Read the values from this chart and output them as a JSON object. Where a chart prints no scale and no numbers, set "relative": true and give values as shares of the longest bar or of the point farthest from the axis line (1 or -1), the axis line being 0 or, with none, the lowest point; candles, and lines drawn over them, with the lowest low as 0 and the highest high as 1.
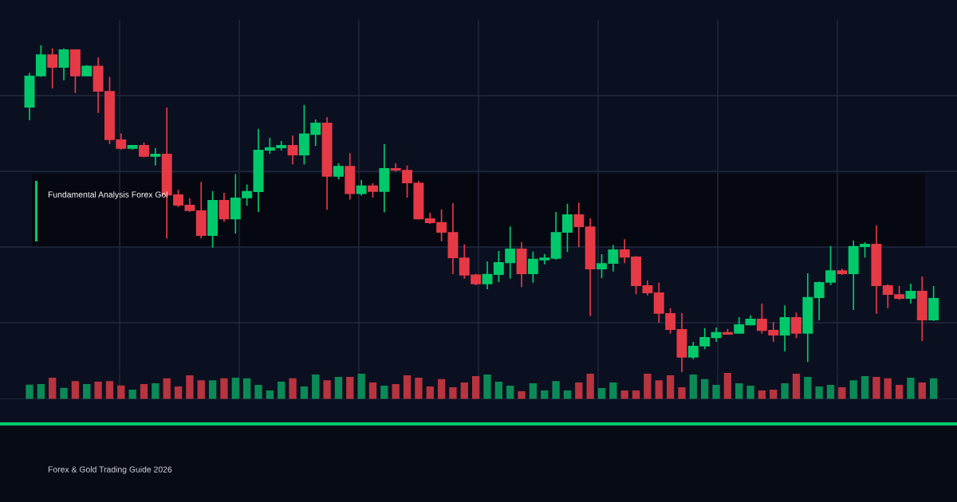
{
  "chart_data": [
    {
      "type": "candlestick",
      "relative": true,
      "grid": true,
      "colors": [
        "#00c96b",
        "#00c96b",
        "#e63946",
        "#00c96b",
        "#e63946",
        "#00c96b",
        "#e63946",
        "#e63946",
        "#e63946",
        "#00c96b",
        "#e63946",
        "#00c96b",
        "#e63946",
        "#e63946",
        "#e63946",
        "#e63946",
        "#00c96b",
        "#e63946",
        "#00c96b",
        "#00c96b",
        "#00c96b",
        "#00c96b",
        "#00c96b",
        "#e63946",
        "#00c96b",
        "#00c96b",
        "#e63946",
        "#00c96b",
        "#e63946",
        "#00c96b",
        "#e63946",
        "#00c96b",
        "#e63946",
        "#e63946",
        "#e63946",
        "#e63946",
        "#e63946",
        "#e63946",
        "#e63946",
        "#e63946",
        "#00c96b",
        "#00c96b",
        "#00c96b",
        "#e63946",
        "#00c96b",
        "#00c96b",
        "#00c96b",
        "#00c96b",
        "#e63946",
        "#e63946",
        "#00c96b",
        "#00c96b",
        "#e63946",
        "#e63946",
        "#e63946",
        "#e63946",
        "#e63946",
        "#e63946",
        "#00c96b",
        "#00c96b",
        "#00c96b",
        "#e63946",
        "#00c96b",
        "#00c96b",
        "#e63946",
        "#e63946",
        "#00c96b",
        "#e63946",
        "#00c96b",
        "#00c96b",
        "#00c96b",
        "#e63946",
        "#00c96b",
        "#00c96b",
        "#e63946",
        "#e63946",
        "#e63946",
        "#00c96b",
        "#e63946",
        "#00c96b"
      ],
      "annotations": [
        "Fundamental Analysis Forex Gol",
        "Forex & Gold Trading Guide 2026"
      ],
      "categories": [
        null,
        null,
        null,
        null,
        null,
        null,
        null,
        null,
        null,
        null,
        null,
        null,
        null,
        null,
        null,
        null,
        null,
        null,
        null,
        null,
        null,
        null,
        null,
        null,
        null,
        null,
        null,
        null,
        null,
        null,
        null,
        null,
        null,
        null,
        null,
        null,
        null,
        null,
        null,
        null,
        null,
        null,
        null,
        null,
        null,
        null,
        null,
        null,
        null,
        null,
        null,
        null,
        null,
        null,
        null,
        null,
        null,
        null,
        null,
        null,
        null,
        null,
        null,
        null,
        null,
        null,
        null,
        null,
        null,
        null,
        null,
        null,
        null,
        null,
        null,
        null,
        null,
        null,
        null,
        null
      ],
      "ohlc": [
        [
          0.809,
          0.915,
          0.771,
          0.907
        ],
        [
          0.905,
          1.0,
          0.903,
          0.972
        ],
        [
          0.972,
          0.99,
          0.868,
          0.931
        ],
        [
          0.931,
          0.99,
          0.893,
          0.987
        ],
        [
          0.987,
          0.987,
          0.854,
          0.905
        ],
        [
          0.905,
          0.939,
          0.905,
          0.937
        ],
        [
          0.937,
          0.963,
          0.793,
          0.858
        ],
        [
          0.86,
          0.903,
          0.698,
          0.71
        ],
        [
          0.712,
          0.73,
          0.681,
          0.683
        ],
        [
          0.683,
          0.695,
          0.681,
          0.695
        ],
        [
          0.695,
          0.703,
          0.657,
          0.659
        ],
        [
          0.659,
          0.686,
          0.632,
          0.668
        ],
        [
          0.668,
          0.809,
          0.409,
          0.541
        ],
        [
          0.544,
          0.558,
          0.505,
          0.51
        ],
        [
          0.512,
          0.532,
          0.49,
          0.493
        ],
        [
          0.495,
          0.582,
          0.409,
          0.417
        ],
        [
          0.417,
          0.554,
          0.381,
          0.527
        ],
        [
          0.527,
          0.549,
          0.46,
          0.468
        ],
        [
          0.468,
          0.606,
          0.424,
          0.534
        ],
        [
          0.532,
          0.574,
          0.509,
          0.554
        ],
        [
          0.551,
          0.744,
          0.49,
          0.68
        ],
        [
          0.678,
          0.717,
          0.668,
          0.688
        ],
        [
          0.685,
          0.707,
          0.678,
          0.695
        ],
        [
          0.695,
          0.724,
          0.636,
          0.663
        ],
        [
          0.663,
          0.817,
          0.635,
          0.73
        ],
        [
          0.726,
          0.773,
          0.692,
          0.763
        ],
        [
          0.763,
          0.78,
          0.497,
          0.598
        ],
        [
          0.598,
          0.639,
          0.59,
          0.631
        ],
        [
          0.631,
          0.67,
          0.528,
          0.545
        ],
        [
          0.545,
          0.588,
          0.54,
          0.571
        ],
        [
          0.571,
          0.578,
          0.534,
          0.552
        ],
        [
          0.552,
          0.697,
          0.489,
          0.624
        ],
        [
          0.624,
          0.639,
          0.614,
          0.617
        ],
        [
          0.619,
          0.632,
          0.534,
          0.578
        ],
        [
          0.58,
          0.585,
          0.468,
          0.468
        ],
        [
          0.471,
          0.488,
          0.454,
          0.456
        ],
        [
          0.459,
          0.498,
          0.401,
          0.427
        ],
        [
          0.429,
          0.517,
          0.3,
          0.349
        ],
        [
          0.351,
          0.391,
          0.286,
          0.296
        ],
        [
          0.299,
          0.301,
          0.266,
          0.269
        ],
        [
          0.269,
          0.339,
          0.254,
          0.301
        ],
        [
          0.298,
          0.371,
          0.276,
          0.337
        ],
        [
          0.334,
          0.446,
          0.286,
          0.378
        ],
        [
          0.378,
          0.398,
          0.261,
          0.3
        ],
        [
          0.3,
          0.369,
          0.274,
          0.347
        ],
        [
          0.342,
          0.362,
          0.33,
          0.351
        ],
        [
          0.347,
          0.49,
          0.344,
          0.429
        ],
        [
          0.427,
          0.515,
          0.368,
          0.483
        ],
        [
          0.483,
          0.519,
          0.383,
          0.444
        ],
        [
          0.446,
          0.471,
          0.172,
          0.315
        ],
        [
          0.315,
          0.361,
          0.288,
          0.334
        ],
        [
          0.332,
          0.389,
          0.308,
          0.376
        ],
        [
          0.376,
          0.407,
          0.334,
          0.351
        ],
        [
          0.354,
          0.356,
          0.239,
          0.264
        ],
        [
          0.266,
          0.281,
          0.235,
          0.242
        ],
        [
          0.244,
          0.274,
          0.152,
          0.179
        ],
        [
          0.181,
          0.196,
          0.118,
          0.13
        ],
        [
          0.132,
          0.181,
          0.0,
          0.045
        ],
        [
          0.045,
          0.093,
          0.04,
          0.081
        ],
        [
          0.079,
          0.135,
          0.071,
          0.108
        ],
        [
          0.105,
          0.137,
          0.093,
          0.123
        ],
        [
          0.123,
          0.132,
          0.115,
          0.115
        ],
        [
          0.118,
          0.169,
          0.118,
          0.147
        ],
        [
          0.144,
          0.174,
          0.144,
          0.164
        ],
        [
          0.164,
          0.21,
          0.118,
          0.127
        ],
        [
          0.13,
          0.154,
          0.093,
          0.113
        ],
        [
          0.113,
          0.205,
          0.064,
          0.169
        ],
        [
          0.169,
          0.183,
          0.105,
          0.118
        ],
        [
          0.118,
          0.303,
          0.032,
          0.23
        ],
        [
          0.227,
          0.278,
          0.159,
          0.276
        ],
        [
          0.274,
          0.386,
          0.266,
          0.312
        ],
        [
          0.312,
          0.317,
          0.298,
          0.3
        ],
        [
          0.3,
          0.403,
          0.191,
          0.386
        ],
        [
          0.383,
          0.398,
          0.351,
          0.393
        ],
        [
          0.393,
          0.449,
          0.179,
          0.264
        ],
        [
          0.266,
          0.269,
          0.196,
          0.237
        ],
        [
          0.239,
          0.264,
          0.222,
          0.225
        ],
        [
          0.225,
          0.271,
          0.21,
          0.249
        ],
        [
          0.249,
          0.293,
          0.096,
          0.159
        ],
        [
          0.159,
          0.264,
          0.157,
          0.227
        ]
      ]
    },
    {
      "type": "bar",
      "relative": true,
      "grid": "x",
      "categories": [
        null,
        null,
        null,
        null,
        null,
        null,
        null,
        null,
        null,
        null,
        null,
        null,
        null,
        null,
        null,
        null,
        null,
        null,
        null,
        null,
        null,
        null,
        null,
        null,
        null,
        null,
        null,
        null,
        null,
        null,
        null,
        null,
        null,
        null,
        null,
        null,
        null,
        null,
        null,
        null,
        null,
        null,
        null,
        null,
        null,
        null,
        null,
        null,
        null,
        null,
        null,
        null,
        null,
        null,
        null,
        null,
        null,
        null,
        null,
        null,
        null,
        null,
        null,
        null,
        null,
        null,
        null,
        null,
        null,
        null,
        null,
        null,
        null,
        null,
        null,
        null,
        null,
        null,
        null,
        null
      ],
      "values": [
        0.55,
        0.57,
        0.82,
        0.43,
        0.69,
        0.57,
        0.66,
        0.69,
        0.52,
        0.36,
        0.57,
        0.6,
        0.79,
        0.48,
        0.91,
        0.72,
        0.72,
        0.79,
        0.82,
        0.79,
        0.54,
        0.33,
        0.66,
        0.79,
        0.48,
        0.94,
        0.72,
        0.85,
        0.85,
        0.97,
        0.63,
        0.51,
        0.57,
        0.91,
        0.82,
        0.48,
        0.76,
        0.45,
        0.63,
        0.88,
        0.94,
        0.66,
        0.51,
        0.3,
        0.6,
        0.33,
        0.69,
        0.33,
        0.63,
        0.97,
        0.42,
        0.63,
        0.33,
        0.33,
        0.97,
        0.72,
        0.91,
        0.45,
        0.94,
        0.76,
        0.54,
        1.0,
        0.6,
        0.51,
        0.33,
        0.36,
        0.6,
        0.97,
        0.85,
        0.48,
        0.54,
        0.45,
        0.72,
        0.88,
        0.85,
        0.79,
        0.54,
        0.82,
        0.63,
        0.79
      ],
      "colors": [
        "#0b8a57",
        "#0b8a57",
        "#b8343f",
        "#0b8a57",
        "#b8343f",
        "#0b8a57",
        "#b8343f",
        "#b8343f",
        "#b8343f",
        "#0b8a57",
        "#b8343f",
        "#0b8a57",
        "#b8343f",
        "#b8343f",
        "#b8343f",
        "#b8343f",
        "#0b8a57",
        "#b8343f",
        "#0b8a57",
        "#0b8a57",
        "#0b8a57",
        "#0b8a57",
        "#0b8a57",
        "#b8343f",
        "#0b8a57",
        "#0b8a57",
        "#b8343f",
        "#0b8a57",
        "#b8343f",
        "#0b8a57",
        "#b8343f",
        "#0b8a57",
        "#b8343f",
        "#b8343f",
        "#b8343f",
        "#b8343f",
        "#b8343f",
        "#b8343f",
        "#b8343f",
        "#b8343f",
        "#0b8a57",
        "#0b8a57",
        "#0b8a57",
        "#b8343f",
        "#0b8a57",
        "#0b8a57",
        "#0b8a57",
        "#0b8a57",
        "#b8343f",
        "#b8343f",
        "#0b8a57",
        "#0b8a57",
        "#b8343f",
        "#b8343f",
        "#b8343f",
        "#b8343f",
        "#b8343f",
        "#b8343f",
        "#0b8a57",
        "#0b8a57",
        "#0b8a57",
        "#b8343f",
        "#0b8a57",
        "#0b8a57",
        "#b8343f",
        "#b8343f",
        "#0b8a57",
        "#b8343f",
        "#0b8a57",
        "#0b8a57",
        "#0b8a57",
        "#b8343f",
        "#0b8a57",
        "#0b8a57",
        "#b8343f",
        "#b8343f",
        "#b8343f",
        "#0b8a57",
        "#b8343f",
        "#0b8a57"
      ]
    }
  ]
}
